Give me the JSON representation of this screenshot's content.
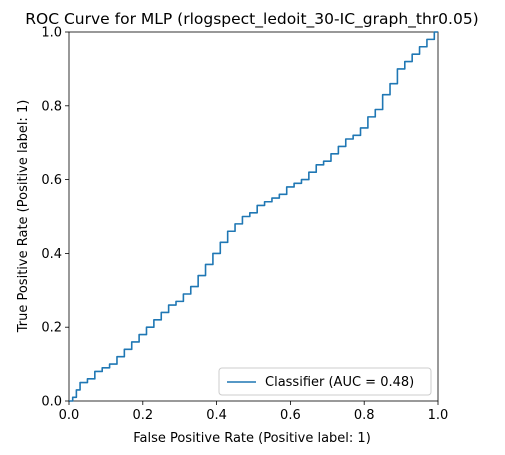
{
  "chart_data": {
    "type": "line",
    "title": "ROC Curve for MLP (rlogspect_ledoit_30-IC_graph_thr0.05)",
    "xlabel": "False Positive Rate (Positive label: 1)",
    "ylabel": "True Positive Rate (Positive label: 1)",
    "xlim": [
      0,
      1
    ],
    "ylim": [
      0,
      1
    ],
    "xticks": [
      0.0,
      0.2,
      0.4,
      0.6,
      0.8,
      1.0
    ],
    "yticks": [
      0.0,
      0.2,
      0.4,
      0.6,
      0.8,
      1.0
    ],
    "xtick_labels": [
      "0.0",
      "0.2",
      "0.4",
      "0.6",
      "0.8",
      "1.0"
    ],
    "ytick_labels": [
      "0.0",
      "0.2",
      "0.4",
      "0.6",
      "0.8",
      "1.0"
    ],
    "grid": false,
    "legend_position": "lower-right",
    "series": [
      {
        "name": "Classifier (AUC = 0.48)",
        "color": "#1f77b4",
        "x": [
          0.0,
          0.01,
          0.02,
          0.03,
          0.05,
          0.07,
          0.09,
          0.11,
          0.13,
          0.15,
          0.17,
          0.19,
          0.21,
          0.23,
          0.25,
          0.27,
          0.29,
          0.31,
          0.33,
          0.35,
          0.37,
          0.39,
          0.41,
          0.43,
          0.45,
          0.47,
          0.49,
          0.51,
          0.53,
          0.55,
          0.57,
          0.59,
          0.61,
          0.63,
          0.65,
          0.67,
          0.69,
          0.71,
          0.73,
          0.75,
          0.77,
          0.79,
          0.81,
          0.83,
          0.85,
          0.87,
          0.89,
          0.91,
          0.93,
          0.95,
          0.97,
          0.99,
          1.0
        ],
        "y": [
          0.0,
          0.01,
          0.03,
          0.05,
          0.06,
          0.08,
          0.09,
          0.1,
          0.12,
          0.14,
          0.16,
          0.18,
          0.2,
          0.22,
          0.24,
          0.26,
          0.27,
          0.29,
          0.31,
          0.34,
          0.37,
          0.4,
          0.43,
          0.46,
          0.48,
          0.5,
          0.51,
          0.53,
          0.54,
          0.55,
          0.56,
          0.58,
          0.59,
          0.6,
          0.62,
          0.64,
          0.65,
          0.67,
          0.69,
          0.71,
          0.72,
          0.74,
          0.77,
          0.79,
          0.83,
          0.86,
          0.9,
          0.92,
          0.94,
          0.96,
          0.98,
          1.0,
          1.0
        ]
      }
    ]
  }
}
